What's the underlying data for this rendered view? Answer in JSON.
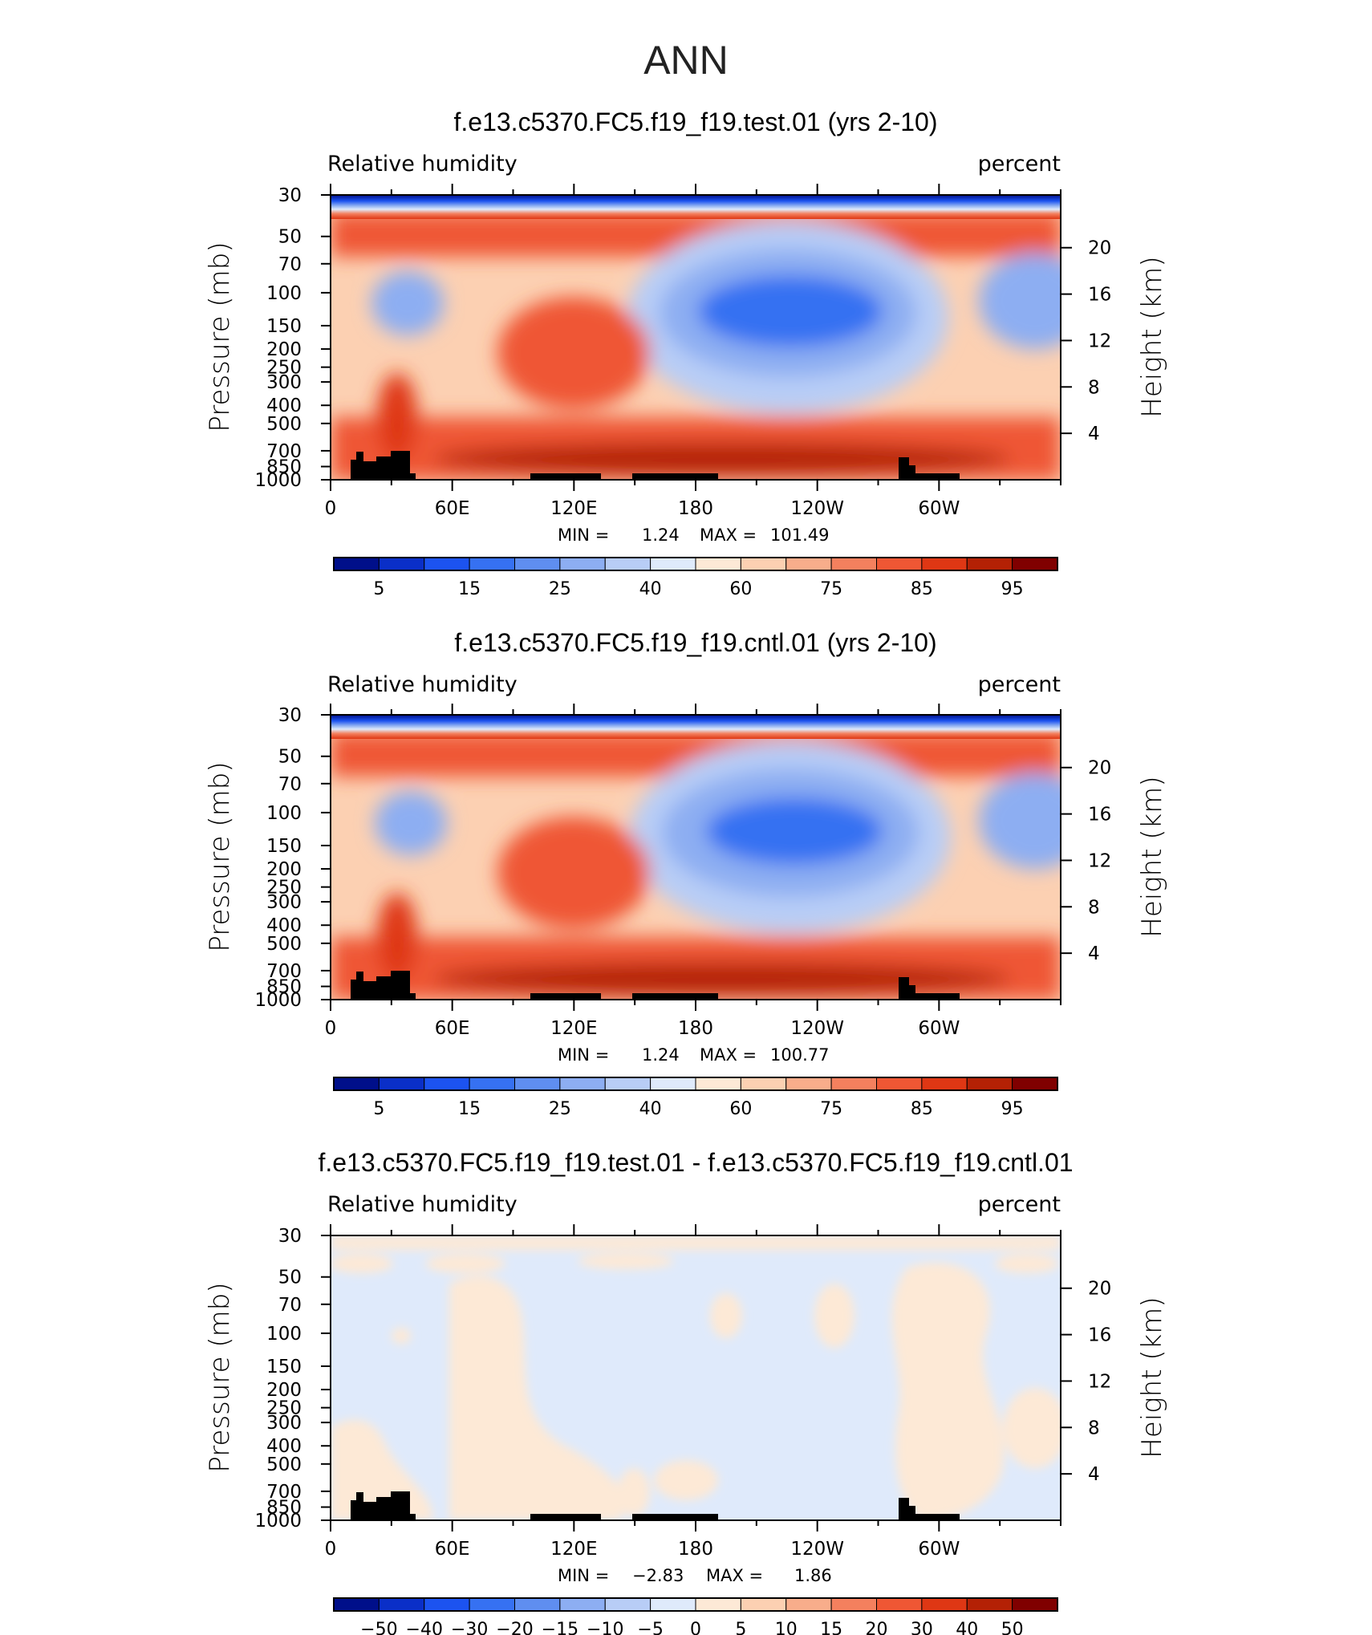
{
  "figure_title": "ANN",
  "chart_data": [
    {
      "type": "heatmap",
      "title": "f.e13.c5370.FC5.f19_f19.test.01 (yrs 2-10)",
      "left_label": "Relative humidity",
      "right_label": "percent",
      "ylabel": "Pressure (mb)",
      "ylabel_right": "Height (km)",
      "x_ticks": [
        "0",
        "60E",
        "120E",
        "180",
        "120W",
        "60W"
      ],
      "y_ticks": [
        "30",
        "50",
        "70",
        "100",
        "150",
        "200",
        "250",
        "300",
        "400",
        "500",
        "700",
        "850",
        "1000"
      ],
      "y_ticks_right": [
        "20",
        "16",
        "12",
        "8",
        "4"
      ],
      "stats": {
        "min_label": "MIN =",
        "min": "1.24",
        "max_label": "MAX =",
        "max": "101.49"
      },
      "colorbar_labels": [
        "5",
        "15",
        "25",
        "40",
        "60",
        "75",
        "85",
        "95"
      ],
      "colorbar_colors": [
        "#000f8a",
        "#0a2fc8",
        "#1c53f0",
        "#3671f2",
        "#5f8ef0",
        "#8daef2",
        "#b8cdf6",
        "#dfeafb",
        "#fde9d6",
        "#fcd0b2",
        "#f8ad8b",
        "#f4805e",
        "#ef5734",
        "#df3714",
        "#b42105",
        "#800000"
      ]
    },
    {
      "type": "heatmap",
      "title": "f.e13.c5370.FC5.f19_f19.cntl.01 (yrs 2-10)",
      "left_label": "Relative humidity",
      "right_label": "percent",
      "ylabel": "Pressure (mb)",
      "ylabel_right": "Height (km)",
      "x_ticks": [
        "0",
        "60E",
        "120E",
        "180",
        "120W",
        "60W"
      ],
      "y_ticks": [
        "30",
        "50",
        "70",
        "100",
        "150",
        "200",
        "250",
        "300",
        "400",
        "500",
        "700",
        "850",
        "1000"
      ],
      "y_ticks_right": [
        "20",
        "16",
        "12",
        "8",
        "4"
      ],
      "stats": {
        "min_label": "MIN =",
        "min": "1.24",
        "max_label": "MAX =",
        "max": "100.77"
      },
      "colorbar_labels": [
        "5",
        "15",
        "25",
        "40",
        "60",
        "75",
        "85",
        "95"
      ],
      "colorbar_colors": [
        "#000f8a",
        "#0a2fc8",
        "#1c53f0",
        "#3671f2",
        "#5f8ef0",
        "#8daef2",
        "#b8cdf6",
        "#dfeafb",
        "#fde9d6",
        "#fcd0b2",
        "#f8ad8b",
        "#f4805e",
        "#ef5734",
        "#df3714",
        "#b42105",
        "#800000"
      ]
    },
    {
      "type": "heatmap",
      "title": "f.e13.c5370.FC5.f19_f19.test.01 - f.e13.c5370.FC5.f19_f19.cntl.01",
      "left_label": "Relative humidity",
      "right_label": "percent",
      "ylabel": "Pressure (mb)",
      "ylabel_right": "Height (km)",
      "x_ticks": [
        "0",
        "60E",
        "120E",
        "180",
        "120W",
        "60W"
      ],
      "y_ticks": [
        "30",
        "50",
        "70",
        "100",
        "150",
        "200",
        "250",
        "300",
        "400",
        "500",
        "700",
        "850",
        "1000"
      ],
      "y_ticks_right": [
        "20",
        "16",
        "12",
        "8",
        "4"
      ],
      "stats": {
        "min_label": "MIN =",
        "min": "−2.83",
        "max_label": "MAX =",
        "max": "1.86"
      },
      "colorbar_labels": [
        "−50",
        "−40",
        "−30",
        "−20",
        "−15",
        "−10",
        "−5",
        "0",
        "5",
        "10",
        "15",
        "20",
        "30",
        "40",
        "50"
      ],
      "colorbar_colors": [
        "#000f8a",
        "#0a2fc8",
        "#1c53f0",
        "#3671f2",
        "#5f8ef0",
        "#8daef2",
        "#b8cdf6",
        "#dfeafb",
        "#fde9d6",
        "#fcd0b2",
        "#f8ad8b",
        "#f4805e",
        "#ef5734",
        "#df3714",
        "#b42105",
        "#800000"
      ]
    }
  ]
}
